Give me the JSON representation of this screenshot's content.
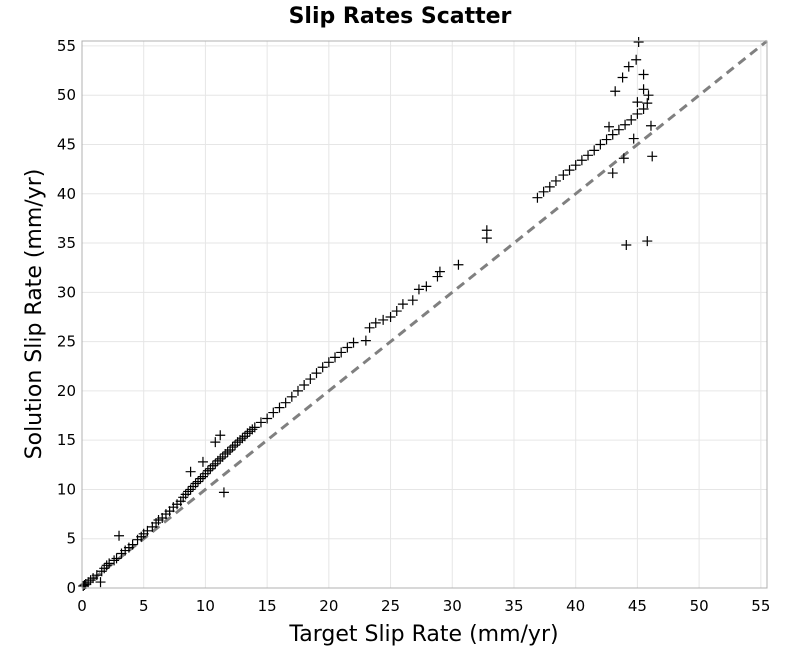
{
  "chart_data": {
    "type": "scatter",
    "title": "Slip Rates Scatter",
    "xlabel": "Target Slip Rate (mm/yr)",
    "ylabel": "Solution Slip Rate (mm/yr)",
    "xlim": [
      0,
      55.5
    ],
    "ylim": [
      0,
      55.5
    ],
    "xticks": [
      0,
      5,
      10,
      15,
      20,
      25,
      30,
      35,
      40,
      45,
      50,
      55
    ],
    "yticks": [
      0,
      5,
      10,
      15,
      20,
      25,
      30,
      35,
      40,
      45,
      50,
      55
    ],
    "grid": true,
    "marker": "plus",
    "marker_color": "#000000",
    "reference_line": {
      "style": "dashed",
      "color": "#808080",
      "slope": 1
    },
    "points": [
      [
        0.1,
        0.2
      ],
      [
        0.2,
        0.3
      ],
      [
        0.3,
        0.4
      ],
      [
        0.5,
        0.6
      ],
      [
        0.7,
        0.8
      ],
      [
        0.9,
        1.0
      ],
      [
        1.2,
        1.3
      ],
      [
        1.5,
        0.6
      ],
      [
        1.6,
        1.7
      ],
      [
        1.8,
        2.0
      ],
      [
        2.0,
        2.3
      ],
      [
        2.2,
        2.5
      ],
      [
        2.6,
        2.8
      ],
      [
        2.8,
        3.0
      ],
      [
        3.0,
        5.3
      ],
      [
        3.2,
        3.5
      ],
      [
        3.5,
        3.8
      ],
      [
        3.8,
        4.1
      ],
      [
        4.1,
        4.4
      ],
      [
        4.5,
        4.9
      ],
      [
        4.8,
        5.2
      ],
      [
        5.0,
        5.5
      ],
      [
        5.3,
        5.8
      ],
      [
        5.7,
        6.2
      ],
      [
        6.0,
        6.6
      ],
      [
        6.2,
        6.9
      ],
      [
        6.5,
        7.1
      ],
      [
        6.8,
        7.5
      ],
      [
        7.1,
        7.8
      ],
      [
        7.4,
        8.2
      ],
      [
        7.7,
        8.5
      ],
      [
        8.0,
        8.8
      ],
      [
        8.2,
        9.2
      ],
      [
        8.4,
        9.5
      ],
      [
        8.6,
        9.8
      ],
      [
        8.8,
        10.0
      ],
      [
        9.0,
        10.3
      ],
      [
        9.2,
        10.6
      ],
      [
        9.4,
        10.8
      ],
      [
        9.6,
        11.1
      ],
      [
        9.8,
        11.3
      ],
      [
        10.0,
        11.6
      ],
      [
        10.2,
        11.9
      ],
      [
        10.4,
        12.1
      ],
      [
        10.6,
        12.4
      ],
      [
        10.8,
        12.6
      ],
      [
        11.0,
        12.9
      ],
      [
        11.2,
        13.1
      ],
      [
        11.4,
        13.3
      ],
      [
        11.6,
        13.6
      ],
      [
        11.8,
        13.8
      ],
      [
        12.0,
        14.0
      ],
      [
        12.2,
        14.3
      ],
      [
        12.4,
        14.5
      ],
      [
        12.6,
        14.8
      ],
      [
        12.8,
        15.0
      ],
      [
        13.0,
        15.2
      ],
      [
        13.2,
        15.4
      ],
      [
        13.4,
        15.7
      ],
      [
        13.6,
        15.9
      ],
      [
        13.8,
        16.1
      ],
      [
        14.0,
        16.3
      ],
      [
        11.5,
        9.7
      ],
      [
        11.2,
        15.5
      ],
      [
        10.8,
        14.8
      ],
      [
        9.8,
        12.8
      ],
      [
        8.8,
        11.8
      ],
      [
        14.5,
        16.8
      ],
      [
        15.0,
        17.2
      ],
      [
        15.5,
        17.8
      ],
      [
        16.0,
        18.3
      ],
      [
        16.5,
        18.8
      ],
      [
        17.0,
        19.4
      ],
      [
        17.5,
        20.0
      ],
      [
        18.0,
        20.6
      ],
      [
        18.5,
        21.2
      ],
      [
        19.0,
        21.8
      ],
      [
        19.5,
        22.4
      ],
      [
        20.0,
        22.9
      ],
      [
        20.5,
        23.4
      ],
      [
        21.0,
        23.9
      ],
      [
        21.5,
        24.4
      ],
      [
        22.0,
        24.9
      ],
      [
        23.0,
        25.1
      ],
      [
        23.3,
        26.4
      ],
      [
        23.8,
        26.9
      ],
      [
        24.4,
        27.2
      ],
      [
        25.0,
        27.5
      ],
      [
        25.5,
        28.1
      ],
      [
        26.0,
        28.8
      ],
      [
        26.8,
        29.2
      ],
      [
        27.3,
        30.3
      ],
      [
        27.9,
        30.6
      ],
      [
        28.8,
        31.6
      ],
      [
        29.0,
        32.1
      ],
      [
        30.5,
        32.8
      ],
      [
        32.8,
        35.5
      ],
      [
        32.8,
        36.3
      ],
      [
        36.9,
        39.6
      ],
      [
        37.4,
        40.2
      ],
      [
        37.9,
        40.7
      ],
      [
        38.4,
        41.3
      ],
      [
        39.0,
        41.9
      ],
      [
        39.5,
        42.4
      ],
      [
        40.0,
        42.9
      ],
      [
        40.5,
        43.4
      ],
      [
        41.0,
        43.9
      ],
      [
        41.5,
        44.4
      ],
      [
        42.0,
        45.0
      ],
      [
        42.5,
        45.5
      ],
      [
        43.0,
        46.0
      ],
      [
        43.5,
        46.5
      ],
      [
        44.0,
        47.0
      ],
      [
        44.5,
        47.5
      ],
      [
        45.0,
        48.1
      ],
      [
        45.5,
        48.6
      ],
      [
        45.8,
        49.2
      ],
      [
        45.5,
        50.6
      ],
      [
        44.9,
        53.6
      ],
      [
        45.5,
        52.1
      ],
      [
        43.8,
        51.8
      ],
      [
        43.2,
        50.4
      ],
      [
        44.3,
        52.9
      ],
      [
        45.1,
        55.4
      ],
      [
        44.1,
        34.8
      ],
      [
        45.8,
        35.2
      ],
      [
        46.2,
        43.8
      ],
      [
        43.9,
        43.6
      ],
      [
        43.0,
        42.1
      ],
      [
        46.1,
        46.9
      ],
      [
        44.7,
        45.6
      ],
      [
        42.7,
        46.8
      ],
      [
        45.9,
        50.0
      ],
      [
        45.0,
        49.3
      ]
    ]
  }
}
